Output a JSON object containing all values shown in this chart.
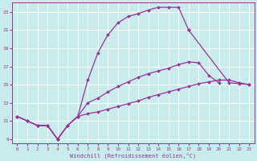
{
  "xlabel": "Windchill (Refroidissement éolien,°C)",
  "ylabel": "",
  "bg_color": "#c8ecec",
  "grid_color": "#ffffff",
  "line_color": "#993399",
  "marker": "D",
  "marker_size": 2.0,
  "line_width": 0.9,
  "xlim": [
    -0.5,
    23.5
  ],
  "ylim": [
    8.5,
    24.0
  ],
  "xticks": [
    0,
    1,
    2,
    3,
    4,
    5,
    6,
    7,
    8,
    9,
    10,
    11,
    12,
    13,
    14,
    15,
    16,
    17,
    18,
    19,
    20,
    21,
    22,
    23
  ],
  "yticks": [
    9,
    11,
    13,
    15,
    17,
    19,
    21,
    23
  ],
  "line1_x": [
    0,
    1,
    2,
    3,
    4,
    5,
    6,
    7,
    8,
    9,
    10,
    11,
    12,
    13,
    14,
    15,
    16,
    17
  ],
  "line1_y": [
    11.5,
    11.0,
    10.5,
    10.5,
    9.0,
    10.5,
    11.5,
    15.5,
    18.5,
    20.5,
    21.8,
    22.5,
    22.8,
    23.2,
    23.5,
    23.5,
    23.5,
    21.0
  ],
  "line2_x": [
    17,
    21,
    22,
    23
  ],
  "line2_y": [
    21.0,
    15.2,
    15.1,
    15.0
  ],
  "line3_x": [
    0,
    1,
    2,
    3,
    4,
    5,
    6,
    7,
    8,
    9,
    10,
    11,
    12,
    13,
    14,
    15,
    16,
    17,
    18,
    19,
    20
  ],
  "line3_y": [
    11.5,
    11.0,
    10.5,
    10.5,
    9.0,
    10.5,
    11.5,
    13.0,
    13.5,
    14.2,
    14.8,
    15.3,
    15.8,
    16.2,
    16.5,
    16.8,
    17.2,
    17.5,
    17.4,
    16.0,
    15.2
  ],
  "line4_x": [
    0,
    1,
    2,
    3,
    4,
    5,
    6,
    7,
    8,
    9,
    10,
    11,
    12,
    13,
    14,
    15,
    16,
    17,
    18,
    19,
    20,
    21,
    22,
    23
  ],
  "line4_y": [
    11.5,
    11.0,
    10.5,
    10.5,
    9.0,
    10.5,
    11.5,
    11.8,
    12.0,
    12.3,
    12.6,
    12.9,
    13.2,
    13.6,
    13.9,
    14.2,
    14.5,
    14.8,
    15.1,
    15.3,
    15.5,
    15.5,
    15.2,
    15.0
  ]
}
